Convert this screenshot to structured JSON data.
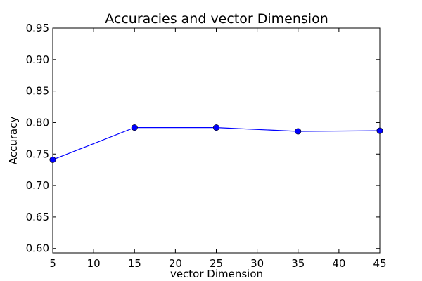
{
  "chart_data": {
    "type": "line",
    "title": "Accuracies and vector Dimension",
    "xlabel": "vector Dimension",
    "ylabel": "Accuracy",
    "xlim": [
      5,
      45
    ],
    "ylim": [
      0.593,
      0.95
    ],
    "xticks": [
      5,
      10,
      15,
      20,
      25,
      30,
      35,
      40,
      45
    ],
    "yticks": [
      0.6,
      0.65,
      0.7,
      0.75,
      0.8,
      0.85,
      0.9,
      0.95
    ],
    "grid": false,
    "series": [
      {
        "name": "accuracy",
        "color": "#0000ff",
        "x": [
          5,
          15,
          25,
          35,
          45
        ],
        "y": [
          0.741,
          0.792,
          0.792,
          0.786,
          0.787
        ]
      }
    ]
  }
}
